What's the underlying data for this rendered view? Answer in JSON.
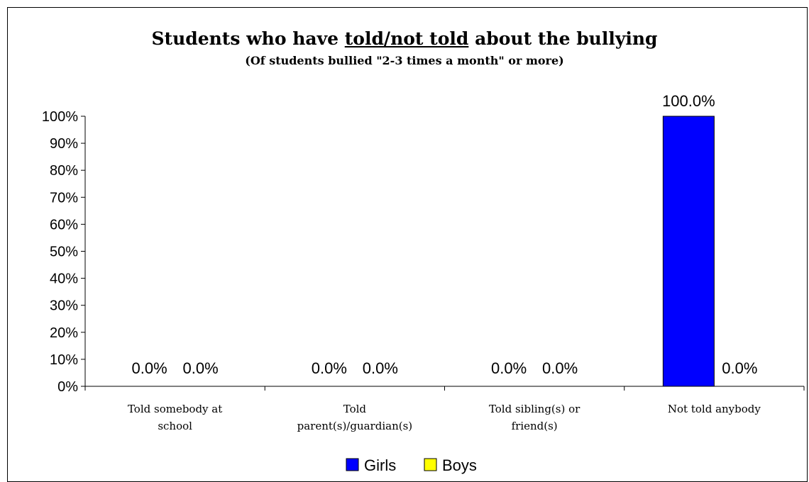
{
  "chart_data": {
    "type": "bar",
    "title_parts": [
      "Students who have ",
      "told/not told",
      " about the bullying"
    ],
    "subtitle": "(Of students bullied \"2-3 times a month\" or more)",
    "categories": [
      [
        "Told somebody at",
        "school"
      ],
      [
        "Told",
        "parent(s)/guardian(s)"
      ],
      [
        "Told sibling(s) or",
        "friend(s)"
      ],
      [
        "Not told anybody"
      ]
    ],
    "series": [
      {
        "name": "Girls",
        "color": "#0000ff",
        "values": [
          0,
          0,
          0,
          100
        ],
        "labels": [
          "0.0%",
          "0.0%",
          "0.0%",
          "100.0%"
        ]
      },
      {
        "name": "Boys",
        "color": "#ffff00",
        "values": [
          0,
          0,
          0,
          0
        ],
        "labels": [
          "0.0%",
          "0.0%",
          "0.0%",
          "0.0%"
        ]
      }
    ],
    "ylim": [
      0,
      100
    ],
    "yticks": [
      "0%",
      "10%",
      "20%",
      "30%",
      "40%",
      "50%",
      "60%",
      "70%",
      "80%",
      "90%",
      "100%"
    ],
    "grid": false,
    "legend_position": "bottom"
  }
}
